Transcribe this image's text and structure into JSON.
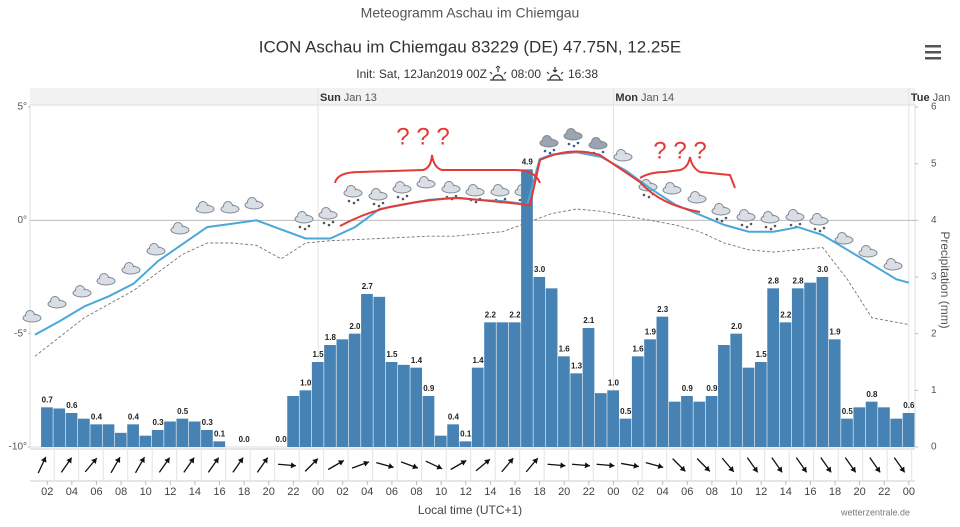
{
  "chart_data": {
    "type": "combo",
    "title": "Meteogramm Aschau im Chiemgau",
    "subtitle": "ICON Aschau im Chiemgau 83229 (DE) 47.75N, 12.25E",
    "init": "Init: Sat, 12Jan2019 00Z",
    "sunrise": "08:00",
    "sunset": "16:38",
    "xlabel": "Local time (UTC+1)",
    "y2label": "Precipitation (mm)",
    "credit": "wetterzentrale.de",
    "annotations": [
      "? ? ?",
      "? ? ?"
    ],
    "xlim": [
      0.6,
      72.5
    ],
    "xticks": [
      {
        "value": 2,
        "label": "02"
      },
      {
        "value": 4,
        "label": "04"
      },
      {
        "value": 6,
        "label": "06"
      },
      {
        "value": 8,
        "label": "08"
      },
      {
        "value": 10,
        "label": "10"
      },
      {
        "value": 12,
        "label": "12"
      },
      {
        "value": 14,
        "label": "14"
      },
      {
        "value": 16,
        "label": "16"
      },
      {
        "value": 18,
        "label": "18"
      },
      {
        "value": 20,
        "label": "20"
      },
      {
        "value": 22,
        "label": "22"
      },
      {
        "value": 24,
        "label": "00"
      },
      {
        "value": 26,
        "label": "02"
      },
      {
        "value": 28,
        "label": "04"
      },
      {
        "value": 30,
        "label": "06"
      },
      {
        "value": 32,
        "label": "08"
      },
      {
        "value": 34,
        "label": "10"
      },
      {
        "value": 36,
        "label": "12"
      },
      {
        "value": 38,
        "label": "14"
      },
      {
        "value": 40,
        "label": "16"
      },
      {
        "value": 42,
        "label": "18"
      },
      {
        "value": 44,
        "label": "20"
      },
      {
        "value": 46,
        "label": "22"
      },
      {
        "value": 48,
        "label": "00"
      },
      {
        "value": 50,
        "label": "02"
      },
      {
        "value": 52,
        "label": "04"
      },
      {
        "value": 54,
        "label": "06"
      },
      {
        "value": 56,
        "label": "08"
      },
      {
        "value": 58,
        "label": "10"
      },
      {
        "value": 60,
        "label": "12"
      },
      {
        "value": 62,
        "label": "14"
      },
      {
        "value": 64,
        "label": "16"
      },
      {
        "value": 66,
        "label": "18"
      },
      {
        "value": 68,
        "label": "20"
      },
      {
        "value": 70,
        "label": "22"
      },
      {
        "value": 72,
        "label": "00"
      }
    ],
    "days": [
      {
        "value": 24,
        "label": "Sun",
        "date": "Jan 13"
      },
      {
        "value": 48,
        "label": "Mon",
        "date": "Jan 14"
      },
      {
        "value": 72,
        "label": "Tue",
        "date": "Jan"
      }
    ],
    "ylim": [
      -10,
      5
    ],
    "yticks": [
      {
        "value": 5,
        "label": "5°"
      },
      {
        "value": 0,
        "label": "0°"
      },
      {
        "value": -5,
        "label": "-5°"
      },
      {
        "value": -10,
        "label": "-10°"
      }
    ],
    "y2lim": [
      0,
      6
    ],
    "y2ticks": [
      0,
      1,
      2,
      3,
      4,
      5,
      6
    ],
    "series": [
      {
        "type": "bar",
        "axis": "y2",
        "color": "#4682b4",
        "x": [
          2,
          3,
          4,
          5,
          6,
          7,
          8,
          9,
          10,
          11,
          12,
          13,
          14,
          15,
          16,
          17,
          18,
          19,
          20,
          21,
          22,
          23,
          24,
          25,
          26,
          27,
          28,
          29,
          30,
          31,
          32,
          33,
          34,
          35,
          36,
          37,
          38,
          39,
          40,
          41,
          42,
          43,
          44,
          45,
          46,
          47,
          48,
          49,
          50,
          51,
          52,
          53,
          54,
          55,
          56,
          57,
          58,
          59,
          60,
          61,
          62,
          63,
          64,
          65,
          66,
          67,
          68,
          69,
          70,
          71,
          72
        ],
        "values": [
          0.7,
          0.68,
          0.6,
          0.5,
          0.4,
          0.4,
          0.25,
          0.4,
          0.2,
          0.3,
          0.45,
          0.5,
          0.45,
          0.3,
          0.1,
          0,
          0,
          0,
          0,
          0,
          0.9,
          1.0,
          1.5,
          1.8,
          1.9,
          2.0,
          2.7,
          2.65,
          1.5,
          1.45,
          1.4,
          0.9,
          0.2,
          0.4,
          0.1,
          1.4,
          2.2,
          2.2,
          2.2,
          4.9,
          3.0,
          2.8,
          1.6,
          1.3,
          2.1,
          0.95,
          1.0,
          0.5,
          1.6,
          1.9,
          2.3,
          0.8,
          0.9,
          0.8,
          0.9,
          1.8,
          2.0,
          1.4,
          1.5,
          2.8,
          2.2,
          2.8,
          2.9,
          3.0,
          1.9,
          0.5,
          0.7,
          0.8,
          0.7,
          0.5,
          0.6
        ],
        "value_labels": [
          "0.7",
          null,
          "0.6",
          null,
          "0.4",
          null,
          null,
          "0.4",
          null,
          "0.3",
          null,
          "0.5",
          null,
          "0.3",
          "0.1",
          null,
          "0.0",
          null,
          null,
          "0.0",
          null,
          "1.0",
          "1.5",
          "1.8",
          null,
          "2.0",
          "2.7",
          null,
          "1.5",
          null,
          "1.4",
          "0.9",
          null,
          "0.4",
          "0.1",
          "1.4",
          "2.2",
          null,
          "2.2",
          "4.9",
          "3.0",
          null,
          "1.6",
          "1.3",
          "2.1",
          null,
          "1.0",
          "0.5",
          "1.6",
          "1.9",
          "2.3",
          null,
          "0.9",
          null,
          "0.9",
          null,
          "2.0",
          null,
          "1.5",
          "2.8",
          "2.2",
          "2.8",
          null,
          "3.0",
          "1.9",
          "0.5",
          null,
          "0.8",
          null,
          null,
          "0.6"
        ]
      },
      {
        "type": "line",
        "axis": "y",
        "color": "#4aa8d8",
        "dash": false,
        "x": [
          1,
          3,
          5,
          7,
          9,
          11,
          13,
          15,
          17,
          19,
          21,
          23,
          25,
          27,
          29,
          31,
          33,
          35,
          37,
          39,
          41,
          42,
          43,
          45,
          47,
          49,
          51,
          53,
          55,
          57,
          59,
          61,
          63,
          65,
          67,
          69,
          71,
          72
        ],
        "values": [
          -5.05,
          -4.45,
          -3.8,
          -3.35,
          -2.8,
          -1.8,
          -1.05,
          -0.3,
          -0.15,
          0.0,
          -0.4,
          -0.8,
          -0.8,
          -0.3,
          0.5,
          0.7,
          0.9,
          1.0,
          0.9,
          0.85,
          0.7,
          2.7,
          2.9,
          3.0,
          2.8,
          2.2,
          1.4,
          0.7,
          0.25,
          -0.2,
          -0.5,
          -0.5,
          -0.3,
          -0.65,
          -1.3,
          -1.95,
          -2.6,
          -2.75
        ]
      },
      {
        "type": "line",
        "axis": "y",
        "color": "#777777",
        "dash": true,
        "x": [
          1,
          5,
          9,
          13,
          15,
          17,
          19,
          21,
          23,
          25,
          29,
          33,
          35,
          37,
          39,
          41,
          43,
          45,
          47,
          49,
          51,
          53,
          55,
          57,
          59,
          61,
          63,
          65,
          67,
          69,
          71,
          72
        ],
        "values": [
          -6.0,
          -4.3,
          -3.1,
          -1.5,
          -1.0,
          -1.0,
          -1.1,
          -1.7,
          -1.0,
          -0.9,
          -0.8,
          -0.7,
          -0.7,
          -0.6,
          -0.5,
          -0.1,
          0.3,
          0.5,
          0.4,
          0.2,
          0.0,
          -0.2,
          -0.5,
          -1.0,
          -1.3,
          -1.4,
          -1.3,
          -1.2,
          -2.6,
          -4.3,
          -4.5,
          -4.6
        ]
      }
    ]
  }
}
